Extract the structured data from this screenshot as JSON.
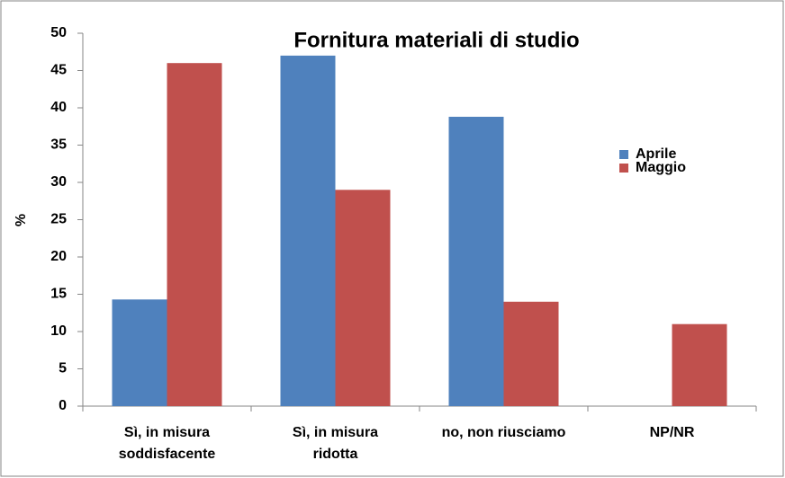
{
  "chart_data": {
    "type": "bar",
    "title": "Fornitura materiali di studio",
    "y_label": "%",
    "categories": [
      "Sì, in misura\nsoddisfacente",
      "Sì, in misura\nridotta",
      "no, non riusciamo",
      "NP/NR"
    ],
    "series": [
      {
        "name": "Aprile",
        "color": "#4f81bd",
        "values": [
          14.3,
          47,
          38.8,
          null
        ]
      },
      {
        "name": "Maggio",
        "color": "#c0504d",
        "values": [
          46,
          29,
          14,
          11
        ]
      }
    ],
    "ylim": [
      0,
      50
    ],
    "yticks": [
      0,
      5,
      10,
      15,
      20,
      25,
      30,
      35,
      40,
      45,
      50
    ],
    "grid": false,
    "legend": "right"
  }
}
